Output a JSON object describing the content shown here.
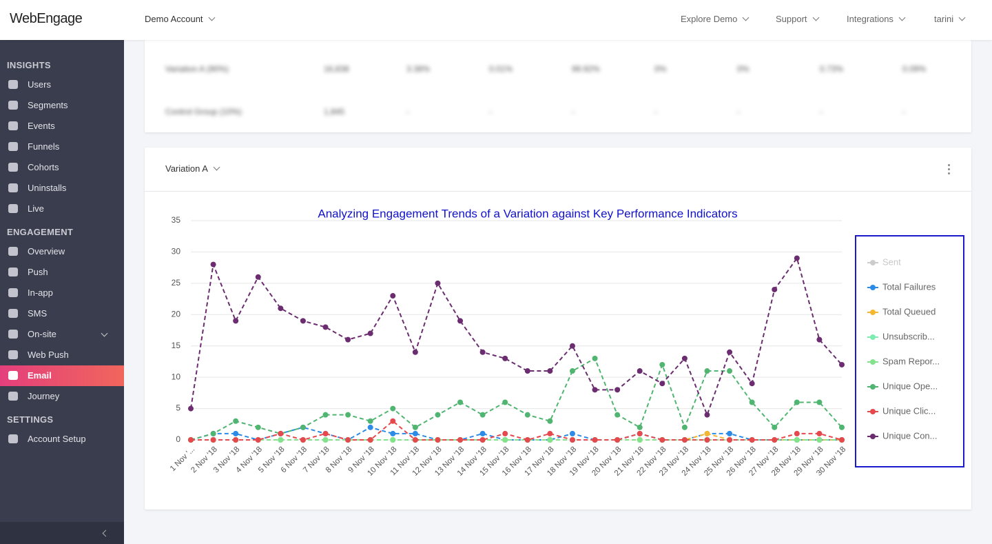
{
  "top_bar": {
    "logo": "WebEngage",
    "account": "Demo Account",
    "menu": [
      "Explore Demo",
      "Support",
      "Integrations",
      "tarini"
    ]
  },
  "sidebar": {
    "sections": [
      {
        "title": "INSIGHTS",
        "items": [
          {
            "label": "Users"
          },
          {
            "label": "Segments"
          },
          {
            "label": "Events"
          },
          {
            "label": "Funnels"
          },
          {
            "label": "Cohorts"
          },
          {
            "label": "Uninstalls"
          },
          {
            "label": "Live"
          }
        ]
      },
      {
        "title": "ENGAGEMENT",
        "items": [
          {
            "label": "Overview"
          },
          {
            "label": "Push"
          },
          {
            "label": "In-app"
          },
          {
            "label": "SMS"
          },
          {
            "label": "On-site",
            "expandable": true
          },
          {
            "label": "Web Push"
          },
          {
            "label": "Email",
            "active": true
          },
          {
            "label": "Journey"
          }
        ]
      },
      {
        "title": "SETTINGS",
        "items": [
          {
            "label": "Account Setup"
          }
        ]
      }
    ]
  },
  "summary_table": {
    "rows": [
      [
        "Variation A (90%)",
        "16,838",
        "3.38%",
        "0.01%",
        "99.92%",
        "0%",
        "0%",
        "0.73%",
        "0.09%"
      ],
      [
        "Control Group (10%)",
        "1,845",
        "-",
        "-",
        "-",
        "-",
        "-",
        "-",
        "-"
      ]
    ]
  },
  "panel": {
    "title": "Variation A"
  },
  "chart_data": {
    "type": "line",
    "title": "Analyzing Engagement Trends of a Variation against Key Performance Indicators",
    "categories": [
      "1 Nov '...",
      "2 Nov '18",
      "3 Nov '18",
      "4 Nov '18",
      "5 Nov '18",
      "6 Nov '18",
      "7 Nov '18",
      "8 Nov '18",
      "9 Nov '18",
      "10 Nov '18",
      "11 Nov '18",
      "12 Nov '18",
      "13 Nov '18",
      "14 Nov '18",
      "15 Nov '18",
      "16 Nov '18",
      "17 Nov '18",
      "18 Nov '18",
      "19 Nov '18",
      "20 Nov '18",
      "21 Nov '18",
      "22 Nov '18",
      "23 Nov '18",
      "24 Nov '18",
      "25 Nov '18",
      "26 Nov '18",
      "27 Nov '18",
      "28 Nov '18",
      "29 Nov '18",
      "30 Nov '18"
    ],
    "ylim": [
      0,
      35
    ],
    "yticks": [
      0,
      5,
      10,
      15,
      20,
      25,
      30,
      35
    ],
    "grid": true,
    "legend": "right",
    "series": [
      {
        "name": "Sent",
        "color": "#cccccc",
        "hidden": true,
        "values": [
          null,
          null,
          null,
          null,
          null,
          null,
          null,
          null,
          null,
          null,
          null,
          null,
          null,
          null,
          null,
          null,
          null,
          null,
          null,
          null,
          null,
          null,
          null,
          null,
          null,
          null,
          null,
          null,
          null,
          null
        ]
      },
      {
        "name": "Total Failures",
        "color": "#2b8be6",
        "values": [
          0,
          1,
          1,
          0,
          1,
          2,
          1,
          0,
          2,
          1,
          1,
          0,
          0,
          1,
          0,
          0,
          0,
          1,
          0,
          0,
          1,
          0,
          0,
          1,
          1,
          0,
          0,
          0,
          0,
          0
        ]
      },
      {
        "name": "Total Queued",
        "color": "#f5b730",
        "values": [
          0,
          0,
          0,
          0,
          0,
          0,
          0,
          0,
          0,
          0,
          0,
          0,
          0,
          0,
          0,
          0,
          0,
          0,
          0,
          0,
          0,
          0,
          0,
          1,
          0,
          0,
          0,
          0,
          0,
          0
        ]
      },
      {
        "name": "Unsubscrib...",
        "color": "#7cecb0",
        "values": [
          0,
          0,
          0,
          0,
          0,
          0,
          0,
          0,
          0,
          0,
          0,
          0,
          0,
          0,
          0,
          0,
          0,
          0,
          0,
          0,
          0,
          0,
          0,
          0,
          0,
          0,
          0,
          0,
          0,
          0
        ]
      },
      {
        "name": "Spam Repor...",
        "color": "#82e38c",
        "values": [
          0,
          0,
          0,
          0,
          0,
          0,
          0,
          0,
          0,
          0,
          0,
          0,
          0,
          0,
          0,
          0,
          0,
          0,
          0,
          0,
          0,
          0,
          0,
          0,
          0,
          0,
          0,
          0,
          0,
          0
        ]
      },
      {
        "name": "Unique Ope...",
        "color": "#50b571",
        "values": [
          0,
          1,
          3,
          2,
          1,
          2,
          4,
          4,
          3,
          5,
          2,
          4,
          6,
          4,
          6,
          4,
          3,
          11,
          13,
          4,
          2,
          12,
          2,
          11,
          11,
          6,
          2,
          6,
          6,
          2
        ]
      },
      {
        "name": "Unique Clic...",
        "color": "#e5484d",
        "values": [
          0,
          0,
          0,
          0,
          1,
          0,
          1,
          0,
          0,
          3,
          0,
          0,
          0,
          0,
          1,
          0,
          1,
          0,
          0,
          0,
          1,
          0,
          0,
          0,
          0,
          0,
          0,
          1,
          1,
          0
        ]
      },
      {
        "name": "Unique Con...",
        "color": "#6b2c70",
        "values": [
          5,
          28,
          19,
          26,
          21,
          19,
          18,
          16,
          17,
          23,
          14,
          25,
          19,
          14,
          13,
          11,
          11,
          15,
          8,
          8,
          11,
          9,
          13,
          4,
          14,
          9,
          24,
          29,
          16,
          12
        ]
      }
    ]
  }
}
